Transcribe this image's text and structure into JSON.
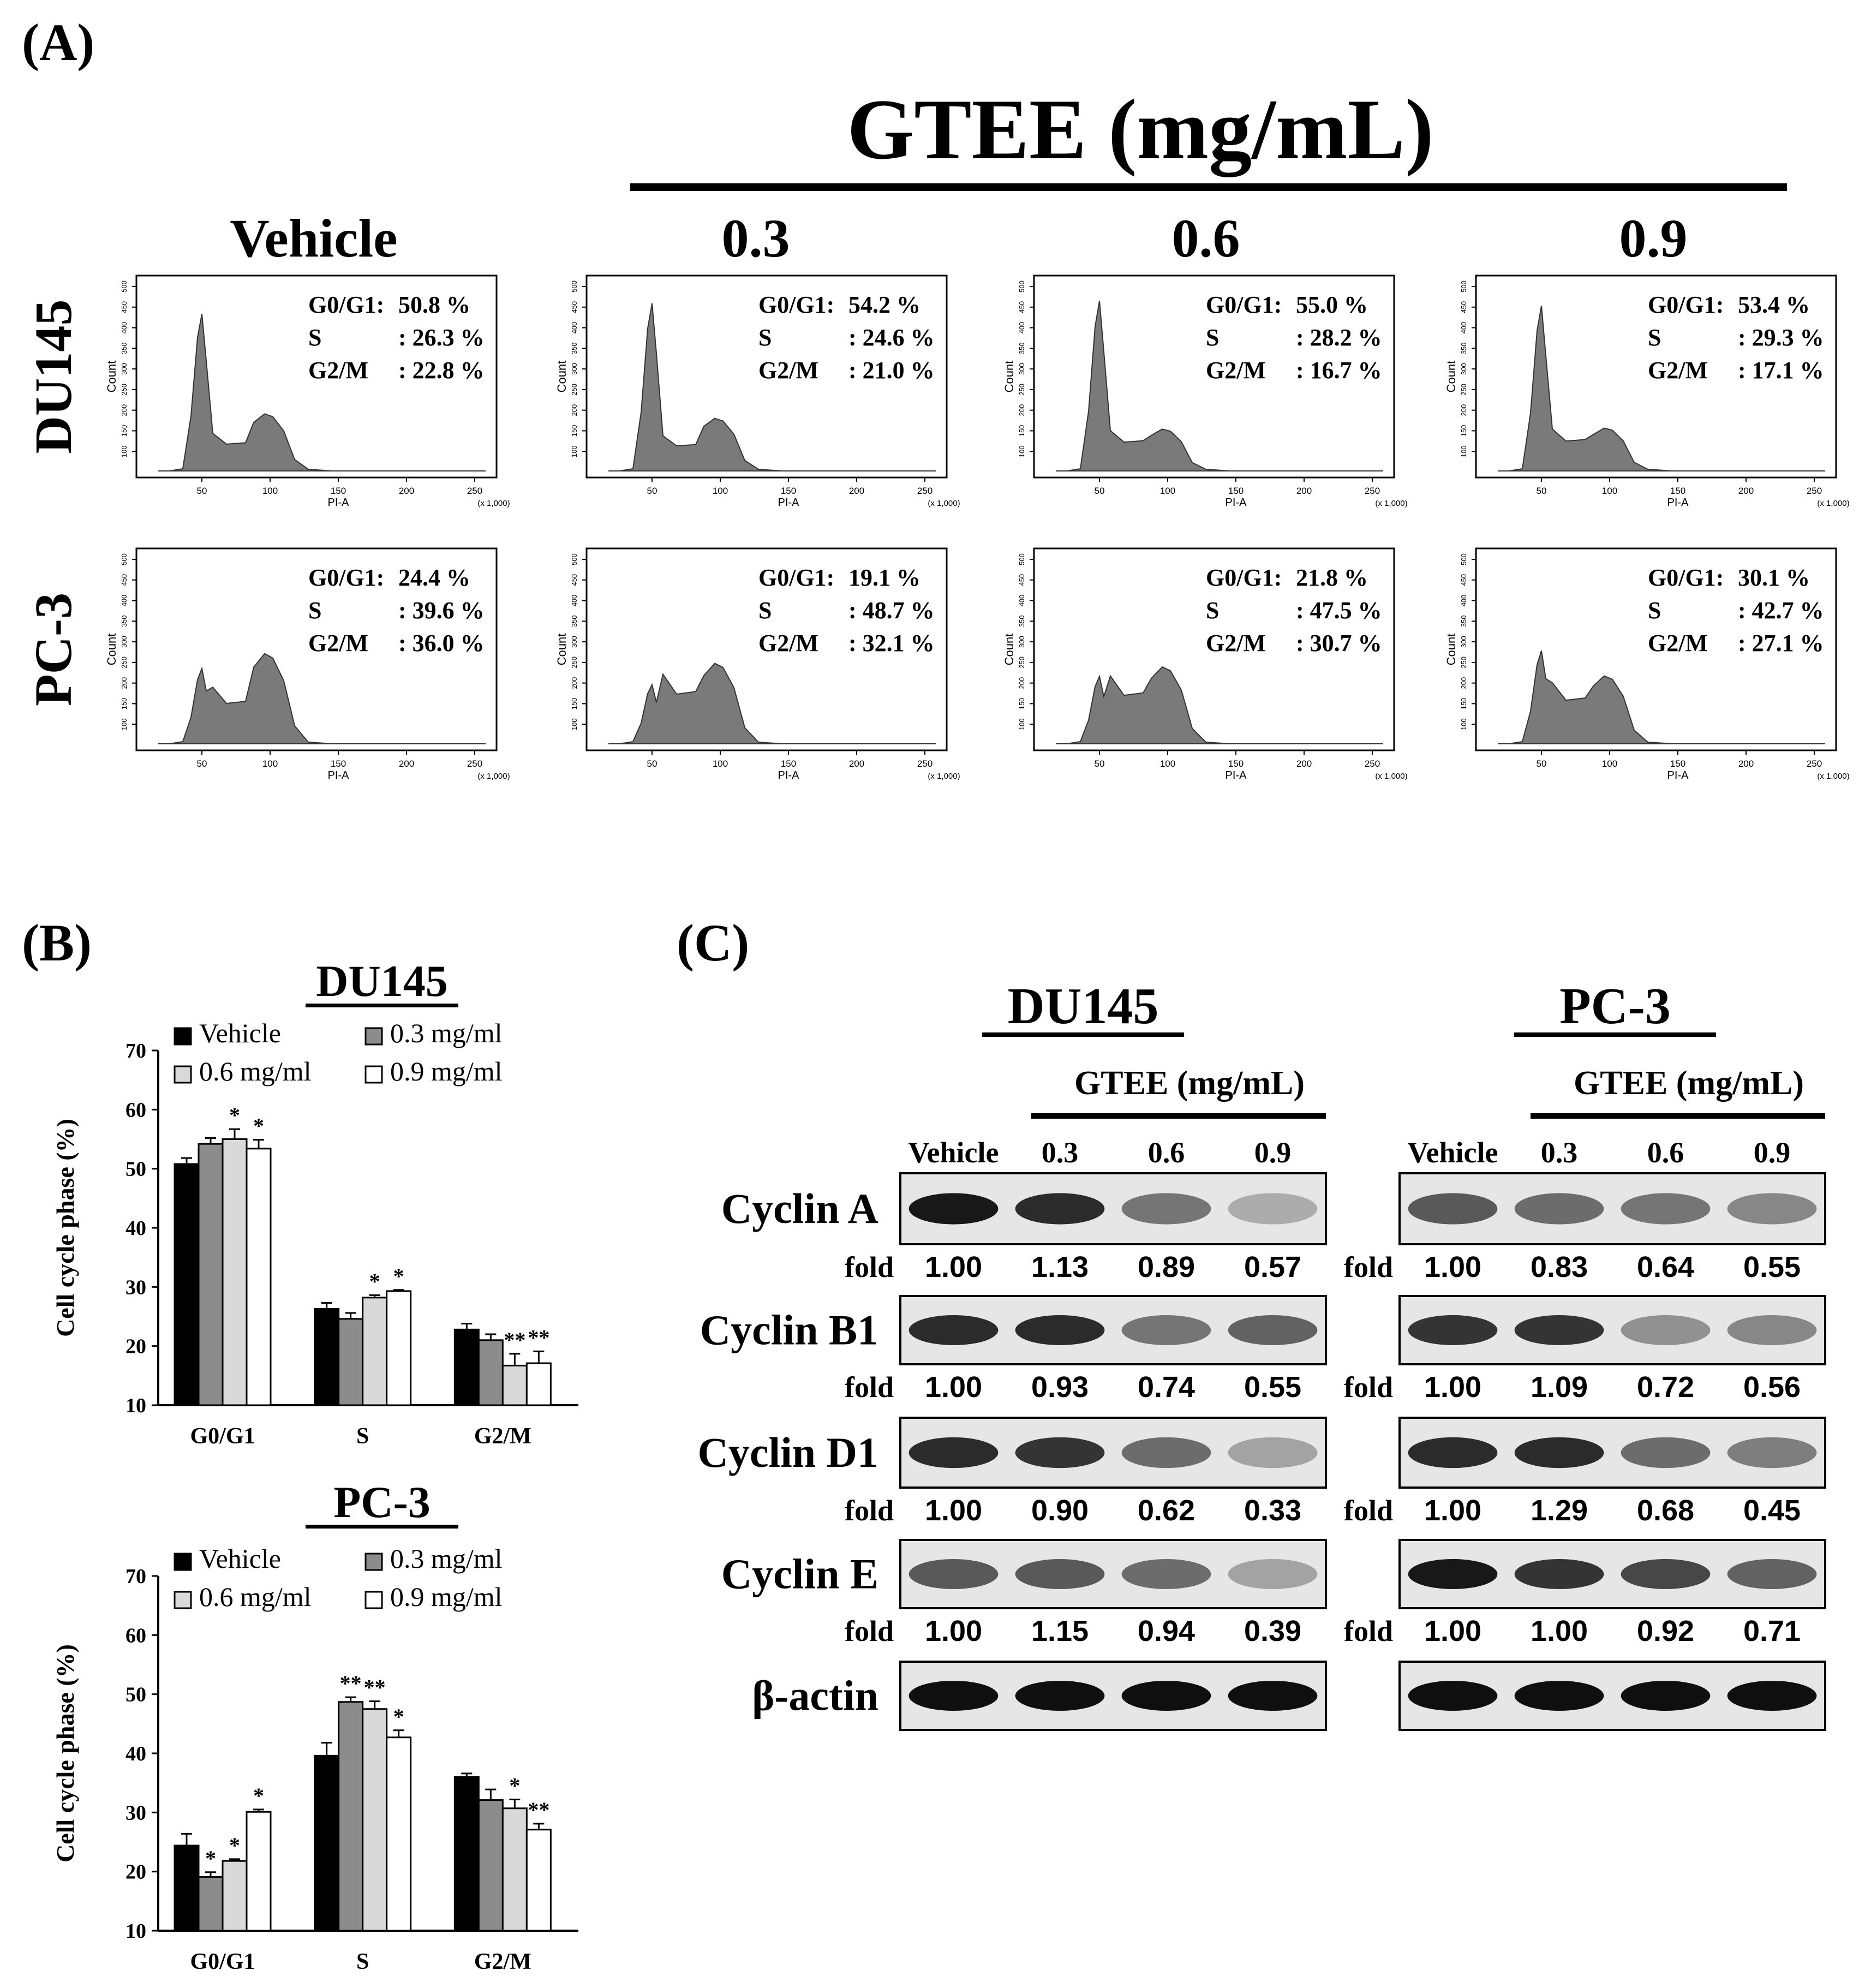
{
  "panel_a": {
    "label": "(A)",
    "treatment_header": "GTEE (mg/mL)",
    "columns": [
      "Vehicle",
      "0.3",
      "0.6",
      "0.9"
    ],
    "rows": [
      "DU145",
      "PC-3"
    ],
    "y_axis_label": "Count",
    "x_axis_label": "PI-A",
    "x_scale_note": "(x 1,000)",
    "x_ticks": [
      "50",
      "100",
      "150",
      "200",
      "250"
    ],
    "y_ticks": [
      "100",
      "150",
      "200",
      "250",
      "300",
      "350",
      "400",
      "450",
      "500"
    ],
    "phase_labels": [
      "G0/G1:",
      "S",
      "G2/M"
    ],
    "histograms": [
      {
        "row": "DU145",
        "col": "Vehicle",
        "g0g1": "50.8 %",
        "s": ": 26.3 %",
        "g2m": ": 22.8 %"
      },
      {
        "row": "DU145",
        "col": "0.3",
        "g0g1": "54.2 %",
        "s": ": 24.6 %",
        "g2m": ": 21.0 %"
      },
      {
        "row": "DU145",
        "col": "0.6",
        "g0g1": "55.0 %",
        "s": ": 28.2 %",
        "g2m": ": 16.7 %"
      },
      {
        "row": "DU145",
        "col": "0.9",
        "g0g1": "53.4 %",
        "s": ": 29.3 %",
        "g2m": ": 17.1 %"
      },
      {
        "row": "PC-3",
        "col": "Vehicle",
        "g0g1": "24.4 %",
        "s": ": 39.6 %",
        "g2m": ": 36.0 %"
      },
      {
        "row": "PC-3",
        "col": "0.3",
        "g0g1": "19.1 %",
        "s": ": 48.7 %",
        "g2m": ": 32.1 %"
      },
      {
        "row": "PC-3",
        "col": "0.6",
        "g0g1": "21.8 %",
        "s": ": 47.5 %",
        "g2m": ": 30.7 %"
      },
      {
        "row": "PC-3",
        "col": "0.9",
        "g0g1": "30.1 %",
        "s": ": 42.7 %",
        "g2m": ": 27.1 %"
      }
    ]
  },
  "panel_b": {
    "label": "(B)"
  },
  "panel_c": {
    "label": "(C)",
    "treatment_header": "GTEE (mg/mL)",
    "lane_labels": [
      "Vehicle",
      "0.3",
      "0.6",
      "0.9"
    ],
    "fold_label": "fold",
    "proteins": [
      "Cyclin A",
      "Cyclin B1",
      "Cyclin D1",
      "Cyclin E",
      "β-actin"
    ],
    "blots": [
      {
        "title": "DU145",
        "folds": [
          [
            "1.00",
            "1.13",
            "0.89",
            "0.57"
          ],
          [
            "1.00",
            "0.93",
            "0.74",
            "0.55"
          ],
          [
            "1.00",
            "0.90",
            "0.62",
            "0.33"
          ],
          [
            "1.00",
            "1.15",
            "0.94",
            "0.39"
          ]
        ]
      },
      {
        "title": "PC-3",
        "folds": [
          [
            "1.00",
            "0.83",
            "0.64",
            "0.55"
          ],
          [
            "1.00",
            "1.09",
            "0.72",
            "0.56"
          ],
          [
            "1.00",
            "1.29",
            "0.68",
            "0.45"
          ],
          [
            "1.00",
            "1.00",
            "0.92",
            "0.71"
          ]
        ]
      }
    ]
  },
  "chart_data": [
    {
      "type": "bar",
      "title": "DU145",
      "xlabel": "",
      "ylabel": "Cell cycle phase (%)",
      "ylim": [
        10,
        70
      ],
      "yticks": [
        10,
        20,
        30,
        40,
        50,
        60,
        70
      ],
      "categories": [
        "G0/G1",
        "S",
        "G2/M"
      ],
      "legend": "top-left",
      "series": [
        {
          "name": "Vehicle",
          "color": "#000000",
          "values": [
            50.8,
            26.3,
            22.8
          ],
          "errors": [
            1.0,
            1.0,
            1.0
          ],
          "sig": [
            "",
            "",
            ""
          ]
        },
        {
          "name": "0.3 mg/ml",
          "color": "#8c8c8c",
          "values": [
            54.2,
            24.6,
            21.0
          ],
          "errors": [
            1.0,
            1.0,
            1.0
          ],
          "sig": [
            "",
            "",
            ""
          ]
        },
        {
          "name": "0.6 mg/ml",
          "color": "#d9d9d9",
          "values": [
            55.0,
            28.2,
            16.7
          ],
          "errors": [
            1.7,
            0.4,
            2.0
          ],
          "sig": [
            "*",
            "*",
            "**"
          ]
        },
        {
          "name": "0.9 mg/ml",
          "color": "#ffffff",
          "values": [
            53.4,
            29.3,
            17.1
          ],
          "errors": [
            1.5,
            0.2,
            2.0
          ],
          "sig": [
            "*",
            "*",
            "**"
          ]
        }
      ]
    },
    {
      "type": "bar",
      "title": "PC-3",
      "xlabel": "",
      "ylabel": "Cell cycle phase (%)",
      "ylim": [
        10,
        70
      ],
      "yticks": [
        10,
        20,
        30,
        40,
        50,
        60,
        70
      ],
      "categories": [
        "G0/G1",
        "S",
        "G2/M"
      ],
      "legend": "top-left",
      "series": [
        {
          "name": "Vehicle",
          "color": "#000000",
          "values": [
            24.4,
            39.6,
            36.0
          ],
          "errors": [
            2.0,
            2.2,
            0.6
          ],
          "sig": [
            "",
            "",
            ""
          ]
        },
        {
          "name": "0.3 mg/ml",
          "color": "#8c8c8c",
          "values": [
            19.1,
            48.7,
            32.1
          ],
          "errors": [
            0.8,
            0.8,
            1.8
          ],
          "sig": [
            "*",
            "**",
            ""
          ]
        },
        {
          "name": "0.6 mg/ml",
          "color": "#d9d9d9",
          "values": [
            21.8,
            47.5,
            30.7
          ],
          "errors": [
            0.3,
            1.3,
            1.5
          ],
          "sig": [
            "*",
            "**",
            "*"
          ]
        },
        {
          "name": "0.9 mg/ml",
          "color": "#ffffff",
          "values": [
            30.1,
            42.7,
            27.1
          ],
          "errors": [
            0.4,
            1.2,
            1.0
          ],
          "sig": [
            "*",
            "*",
            "**"
          ]
        }
      ]
    }
  ]
}
